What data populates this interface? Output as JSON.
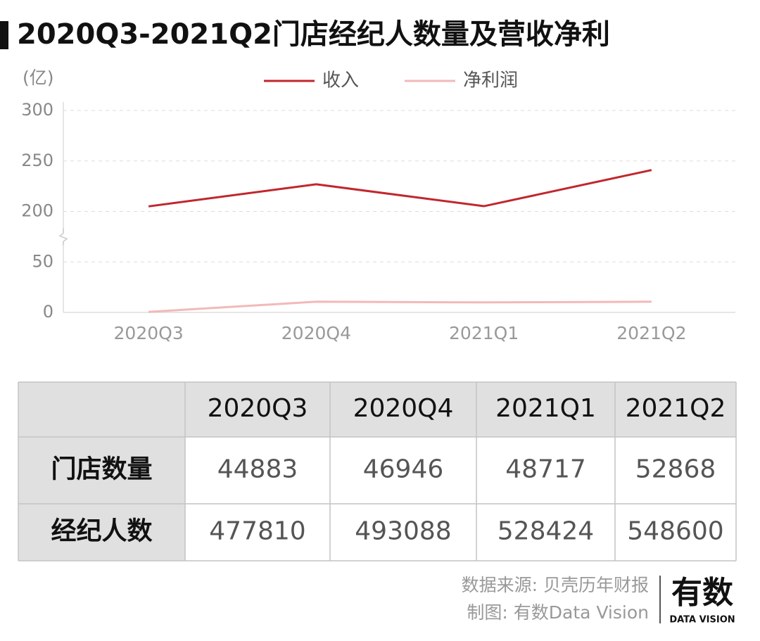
{
  "chart_data": {
    "type": "line",
    "title": "2020Q3-2021Q2门店经纪人数量及营收净利",
    "y_unit": "(亿)",
    "categories": [
      "2020Q3",
      "2020Q4",
      "2021Q1",
      "2021Q2"
    ],
    "series": [
      {
        "name": "收入",
        "color": "#c0272d",
        "values": [
          205.0,
          226.9,
          205.2,
          241.0
        ]
      },
      {
        "name": "净利润",
        "color": "#f2b9b9",
        "values": [
          0.5,
          10.6,
          9.9,
          10.6
        ]
      }
    ],
    "ylim": [
      0,
      300
    ],
    "yticks": [
      0,
      50,
      200,
      250,
      300
    ],
    "axis_break": true,
    "grid": true,
    "legend": "top"
  },
  "table": {
    "columns": [
      "2020Q3",
      "2020Q4",
      "2021Q1",
      "2021Q2"
    ],
    "rows": [
      {
        "label": "门店数量",
        "values": [
          "44883",
          "46946",
          "48717",
          "52868"
        ]
      },
      {
        "label": "经纪人数",
        "values": [
          "477810",
          "493088",
          "528424",
          "548600"
        ]
      }
    ]
  },
  "footer": {
    "source": "数据来源: 贝壳历年财报",
    "credit": "制图: 有数Data Vision",
    "logo": "有数",
    "logo_sub": "DATA VISION"
  }
}
